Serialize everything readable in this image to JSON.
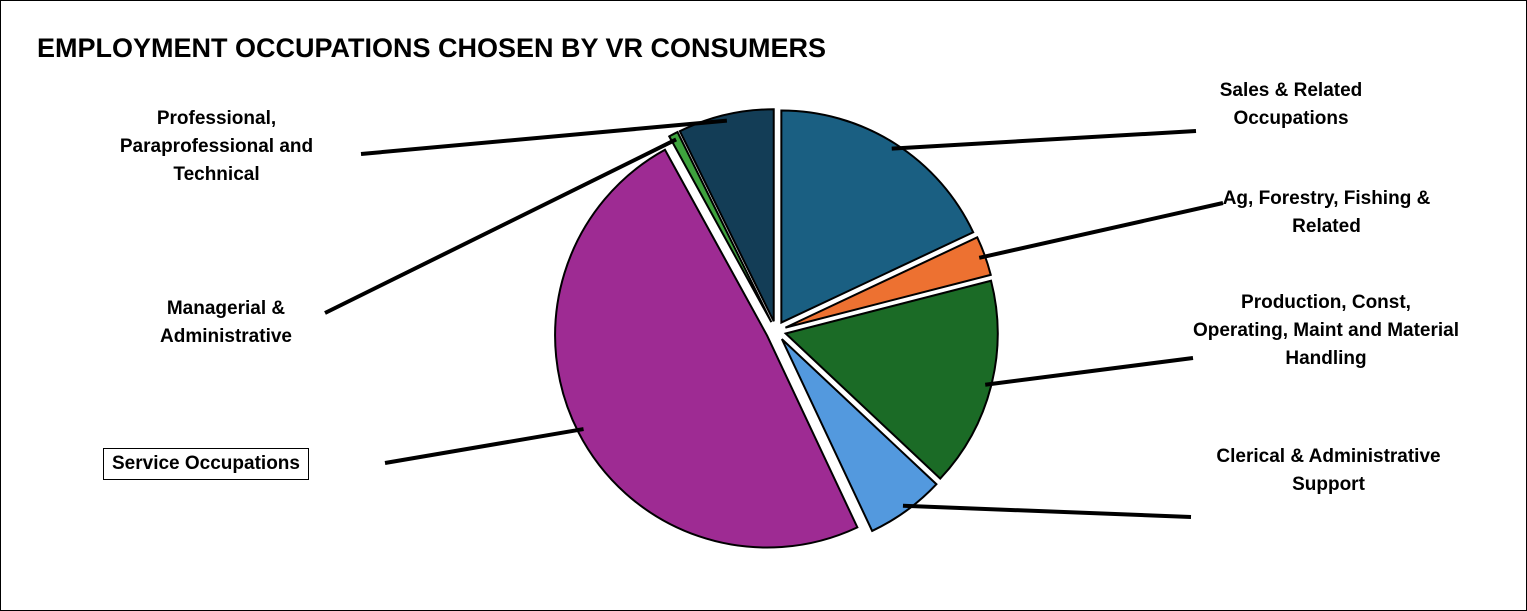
{
  "chart_data": {
    "type": "pie",
    "title": "EMPLOYMENT OCCUPATIONS CHOSEN BY VR CONSUMERS",
    "exploded": true,
    "slices": [
      {
        "label": "Sales & Related Occupations",
        "value": 18.0,
        "color": "#1a5f82"
      },
      {
        "label": "Ag, Forestry, Fishing & Related",
        "value": 3.0,
        "color": "#ed7131"
      },
      {
        "label": "Production, Const, Operating, Maint and Material Handling",
        "value": 16.0,
        "color": "#1b6b26"
      },
      {
        "label": "Clerical & Administrative Support",
        "value": 6.0,
        "color": "#5399de"
      },
      {
        "label": "Service Occupations",
        "value": 49.0,
        "color": "#9e2b93"
      },
      {
        "label": "Managerial & Administrative",
        "value": 0.7,
        "color": "#3ea33e"
      },
      {
        "label": "Professional, Paraprofessional and Technical",
        "value": 7.3,
        "color": "#133d56"
      }
    ]
  }
}
